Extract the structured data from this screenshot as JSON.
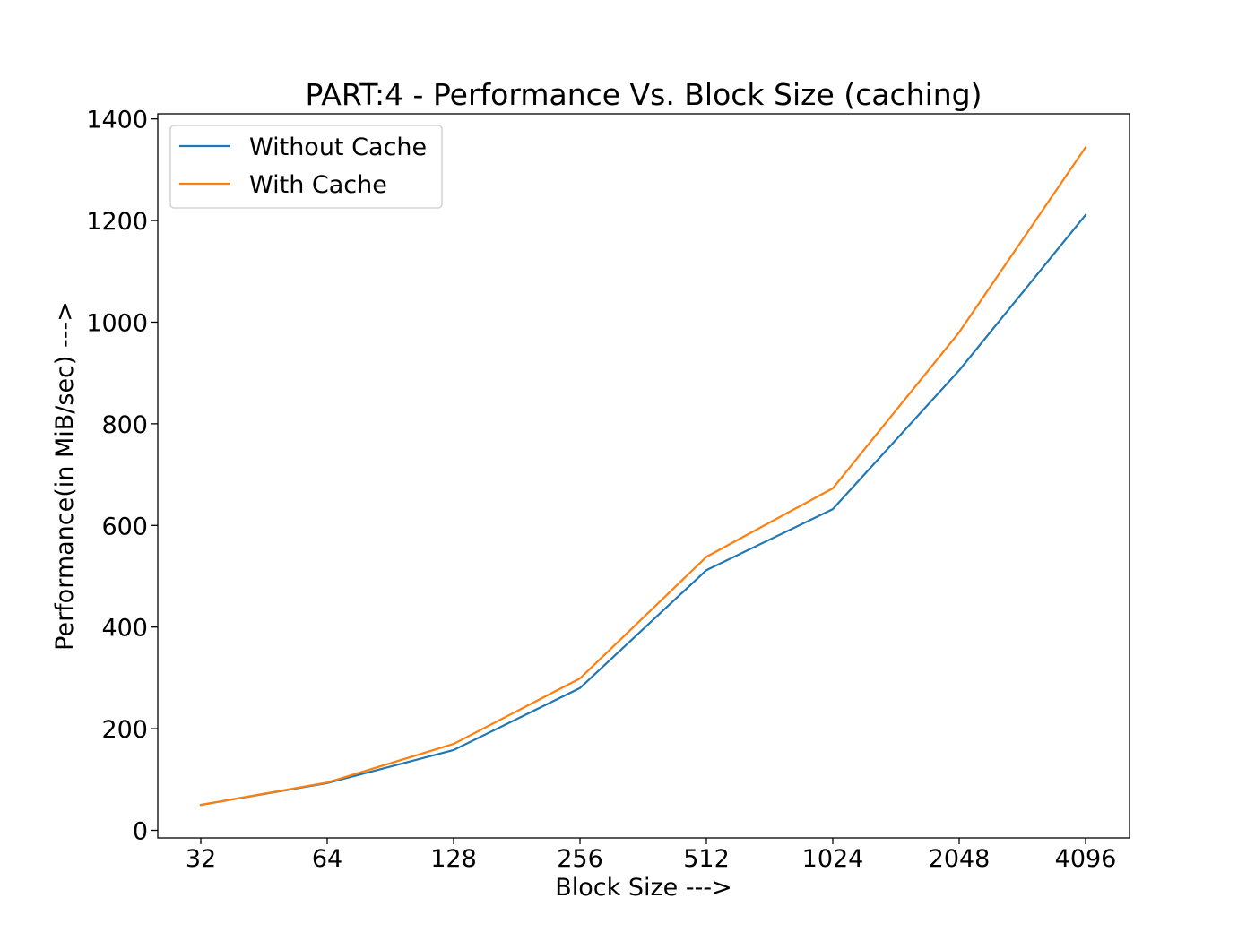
{
  "chart_data": {
    "type": "line",
    "title": "PART:4 - Performance Vs. Block Size (caching)",
    "xlabel": "Block Size --->",
    "ylabel": "Performance(in MiB/sec) --->",
    "categories": [
      "32",
      "64",
      "128",
      "256",
      "512",
      "1024",
      "2048",
      "4096"
    ],
    "ylim": [
      -15,
      1410
    ],
    "yticks": [
      0,
      200,
      400,
      600,
      800,
      1000,
      1200,
      1400
    ],
    "grid": false,
    "legend_position": "top-left",
    "series": [
      {
        "name": "Without Cache",
        "color": "#1f77b4",
        "values": [
          50,
          93,
          158,
          280,
          512,
          632,
          905,
          1211
        ]
      },
      {
        "name": "With Cache",
        "color": "#ff7f0e",
        "values": [
          50,
          94,
          170,
          299,
          538,
          673,
          980,
          1344
        ]
      }
    ]
  }
}
